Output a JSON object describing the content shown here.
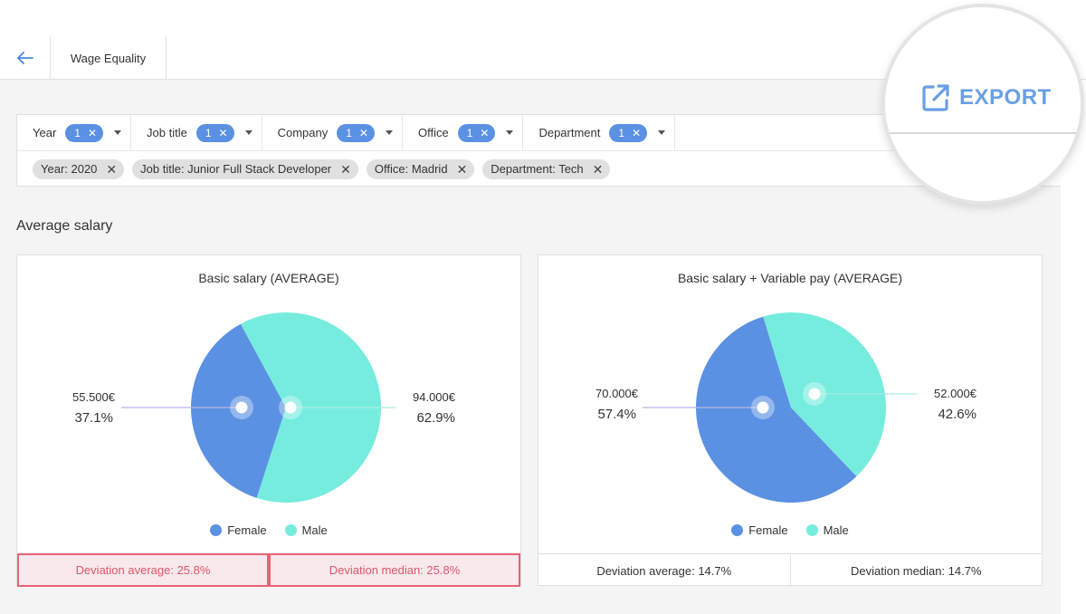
{
  "header": {
    "back_icon": "arrow-left-icon",
    "tab_label": "Wage Equality",
    "export_label": "EXPORT",
    "export_icon": "external-link-icon"
  },
  "filters": [
    {
      "label": "Year",
      "count": "1"
    },
    {
      "label": "Job title",
      "count": "1"
    },
    {
      "label": "Company",
      "count": "1"
    },
    {
      "label": "Office",
      "count": "1"
    },
    {
      "label": "Department",
      "count": "1"
    }
  ],
  "active_chips": [
    "Year: 2020",
    "Job title: Junior Full Stack Developer",
    "Office: Madrid",
    "Department: Tech"
  ],
  "section_title": "Average salary",
  "colors": {
    "female": "#5b91e3",
    "male": "#76ecdf",
    "accent": "#5b91e3",
    "alert": "#e96275"
  },
  "legend": {
    "female": "Female",
    "male": "Male"
  },
  "cards": [
    {
      "title": "Basic salary (AVERAGE)",
      "deviation_average": "Deviation average: 25.8%",
      "deviation_median": "Deviation median: 25.8%",
      "female_value": "55.500€",
      "female_pct": "37.1%",
      "male_value": "94.000€",
      "male_pct": "62.9%",
      "highlighted": true
    },
    {
      "title": "Basic salary + Variable pay (AVERAGE)",
      "deviation_average": "Deviation average: 14.7%",
      "deviation_median": "Deviation median: 14.7%",
      "female_value": "70.000€",
      "female_pct": "57.4%",
      "male_value": "52.000€",
      "male_pct": "42.6%",
      "highlighted": false
    }
  ],
  "chart_data": [
    {
      "type": "pie",
      "title": "Basic salary (AVERAGE)",
      "categories": [
        "Female",
        "Male"
      ],
      "values": [
        37.1,
        62.9
      ],
      "amounts": [
        "55.500€",
        "94.000€"
      ],
      "legend": "bottom"
    },
    {
      "type": "pie",
      "title": "Basic salary + Variable pay (AVERAGE)",
      "categories": [
        "Female",
        "Male"
      ],
      "values": [
        57.4,
        42.6
      ],
      "amounts": [
        "70.000€",
        "52.000€"
      ],
      "legend": "bottom"
    }
  ]
}
